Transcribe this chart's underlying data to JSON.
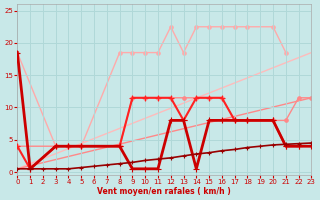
{
  "xlabel": "Vent moyen/en rafales ( km/h )",
  "xlim": [
    0,
    23
  ],
  "ylim": [
    -0.5,
    26
  ],
  "yticks": [
    0,
    5,
    10,
    15,
    20,
    25
  ],
  "xticks": [
    0,
    1,
    2,
    3,
    4,
    5,
    6,
    7,
    8,
    9,
    10,
    11,
    12,
    13,
    14,
    15,
    16,
    17,
    18,
    19,
    20,
    21,
    22,
    23
  ],
  "bg_color": "#c8e8e8",
  "grid_color": "#b0d8d8",
  "series": [
    {
      "x": [
        0,
        3,
        4,
        5,
        8,
        9,
        10,
        11,
        12,
        13,
        14,
        15,
        16,
        17,
        18,
        20,
        21,
        22,
        23
      ],
      "y": [
        18.5,
        4.0,
        4.0,
        4.0,
        18.5,
        18.5,
        18.5,
        18.5,
        22.5,
        18.5,
        22.5,
        22.5,
        22.5,
        22.5,
        22.5,
        22.5,
        18.5,
        null,
        null
      ],
      "color": "#ffaaaa",
      "lw": 1.0,
      "marker": "o",
      "ms": 2.5,
      "zorder": 1
    },
    {
      "x": [
        0,
        23
      ],
      "y": [
        0.5,
        18.5
      ],
      "color": "#ffbbbb",
      "lw": 1.0,
      "marker": null,
      "ms": 0,
      "zorder": 1
    },
    {
      "x": [
        0,
        23
      ],
      "y": [
        0.5,
        11.5
      ],
      "color": "#ff8888",
      "lw": 1.0,
      "marker": null,
      "ms": 0,
      "zorder": 1
    },
    {
      "x": [
        0,
        3,
        4,
        5,
        8,
        9,
        10,
        11,
        12,
        13,
        14,
        15,
        16,
        17,
        18,
        20,
        21,
        22,
        23
      ],
      "y": [
        4.0,
        4.0,
        4.0,
        4.0,
        4.0,
        11.5,
        11.5,
        11.5,
        11.5,
        11.5,
        11.5,
        11.5,
        11.5,
        8.0,
        8.0,
        8.0,
        8.0,
        11.5,
        11.5
      ],
      "color": "#ff8888",
      "lw": 1.0,
      "marker": "o",
      "ms": 2.5,
      "zorder": 2
    },
    {
      "x": [
        0,
        1,
        3,
        4,
        5,
        8,
        9,
        10,
        11,
        12,
        13,
        14,
        15,
        16,
        17,
        18,
        20,
        21,
        22
      ],
      "y": [
        4.0,
        0.5,
        4.0,
        4.0,
        4.0,
        4.0,
        11.5,
        11.5,
        11.5,
        11.5,
        8.0,
        11.5,
        11.5,
        11.5,
        8.0,
        8.0,
        8.0,
        4.0,
        4.0
      ],
      "color": "#ff2222",
      "lw": 1.5,
      "marker": "+",
      "ms": 4,
      "zorder": 3
    },
    {
      "x": [
        0,
        1,
        3,
        4,
        5,
        8,
        9,
        10,
        11,
        12,
        13,
        14,
        15,
        16,
        17,
        18,
        20,
        21,
        22,
        23
      ],
      "y": [
        18.5,
        0.5,
        4.0,
        4.0,
        4.0,
        4.0,
        0.5,
        0.5,
        0.5,
        8.0,
        8.0,
        0.5,
        8.0,
        8.0,
        8.0,
        8.0,
        8.0,
        4.0,
        4.0,
        4.0
      ],
      "color": "#cc0000",
      "lw": 2.0,
      "marker": "+",
      "ms": 4,
      "zorder": 4
    },
    {
      "x": [
        0,
        1,
        2,
        3,
        4,
        5,
        6,
        7,
        8,
        9,
        10,
        11,
        12,
        13,
        14,
        15,
        16,
        17,
        18,
        19,
        20,
        21,
        22,
        23
      ],
      "y": [
        0.5,
        0.5,
        0.5,
        0.5,
        0.5,
        0.7,
        0.9,
        1.1,
        1.3,
        1.5,
        1.8,
        2.0,
        2.2,
        2.5,
        2.8,
        3.0,
        3.3,
        3.5,
        3.8,
        4.0,
        4.2,
        4.3,
        4.4,
        4.5
      ],
      "color": "#990000",
      "lw": 1.2,
      "marker": "+",
      "ms": 3,
      "zorder": 5
    }
  ]
}
